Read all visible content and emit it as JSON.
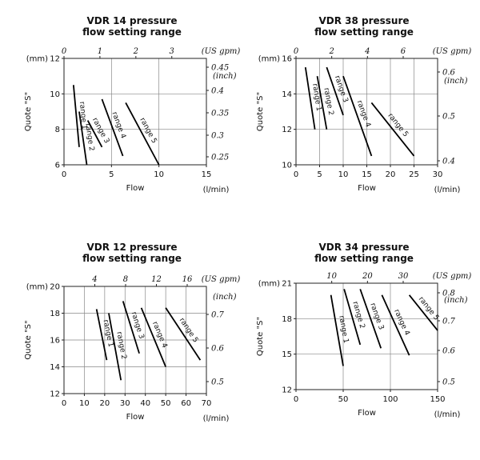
{
  "chart_data": [
    {
      "type": "line",
      "title_line1": "VDR 14 pressure",
      "title_line2": "flow setting range",
      "xlabel": "Flow",
      "xunit": "(l/min)",
      "ylabel": "Quote \"S\"",
      "yunit": "(mm)",
      "xlim": [
        0,
        15
      ],
      "ylim": [
        6,
        12
      ],
      "x_ticks": [
        0,
        5,
        10,
        15
      ],
      "y_ticks": [
        6,
        8,
        10,
        12
      ],
      "top_axis": {
        "unit": "(US gpm)",
        "ticks": [
          0,
          1,
          2,
          3
        ],
        "factor": 3.785
      },
      "right_axis": {
        "unit": "(inch)",
        "labels": [
          "0.45",
          "0.4",
          "0.35",
          "0.3",
          "0.25"
        ],
        "values": [
          0.45,
          0.4,
          0.35,
          0.3,
          0.25
        ]
      },
      "grid": true,
      "series": [
        {
          "name": "range 1",
          "x": [
            1.0,
            1.6
          ],
          "y": [
            10.5,
            7.0
          ]
        },
        {
          "name": "range 2",
          "x": [
            1.6,
            2.4
          ],
          "y": [
            9.0,
            6.0
          ]
        },
        {
          "name": "range 3",
          "x": [
            2.5,
            4.0
          ],
          "y": [
            8.5,
            7.0
          ]
        },
        {
          "name": "range 4",
          "x": [
            4.0,
            6.2
          ],
          "y": [
            9.7,
            6.5
          ]
        },
        {
          "name": "range 5",
          "x": [
            6.5,
            10.0
          ],
          "y": [
            9.5,
            6.0
          ]
        }
      ]
    },
    {
      "type": "line",
      "title_line1": "VDR 38 pressure",
      "title_line2": "flow setting range",
      "xlabel": "Flow",
      "xunit": "(l/min)",
      "ylabel": "Quote \"S\"",
      "yunit": "(mm)",
      "xlim": [
        0,
        30
      ],
      "ylim": [
        10,
        16
      ],
      "x_ticks": [
        0,
        5,
        10,
        15,
        20,
        25,
        30
      ],
      "y_ticks": [
        10,
        12,
        14,
        16
      ],
      "top_axis": {
        "unit": "(US gpm)",
        "ticks": [
          0,
          2,
          4,
          6
        ],
        "factor": 3.785
      },
      "right_axis": {
        "unit": "(inch)",
        "labels": [
          "0.6",
          "0.5",
          "0.4"
        ],
        "values": [
          0.6,
          0.5,
          0.4
        ]
      },
      "grid": true,
      "series": [
        {
          "name": "range 1",
          "x": [
            2.0,
            4.0
          ],
          "y": [
            15.5,
            12.0
          ]
        },
        {
          "name": "range 2",
          "x": [
            4.5,
            6.5
          ],
          "y": [
            15.0,
            12.0
          ]
        },
        {
          "name": "range 3",
          "x": [
            6.5,
            10.0
          ],
          "y": [
            15.5,
            12.8
          ]
        },
        {
          "name": "range 4",
          "x": [
            10.0,
            16.0
          ],
          "y": [
            15.0,
            10.5
          ]
        },
        {
          "name": "range 5",
          "x": [
            16.0,
            25.0
          ],
          "y": [
            13.5,
            10.5
          ]
        }
      ]
    },
    {
      "type": "line",
      "title_line1": "VDR 12 pressure",
      "title_line2": "flow setting range",
      "xlabel": "Flow",
      "xunit": "(l/min)",
      "ylabel": "Quote \"S\"",
      "yunit": "(mm)",
      "xlim": [
        0,
        70
      ],
      "ylim": [
        12,
        20
      ],
      "x_ticks": [
        0,
        10,
        20,
        30,
        40,
        50,
        60,
        70
      ],
      "y_ticks": [
        12,
        14,
        16,
        18,
        20
      ],
      "top_axis": {
        "unit": "(US gpm)",
        "ticks": [
          4,
          8,
          12,
          16
        ],
        "factor": 3.785
      },
      "right_axis": {
        "unit": "(inch)",
        "labels": [
          "0.7",
          "0.6",
          "0.5"
        ],
        "values": [
          0.7,
          0.6,
          0.5
        ]
      },
      "grid": true,
      "series": [
        {
          "name": "range 1",
          "x": [
            16.0,
            21.0
          ],
          "y": [
            18.3,
            14.5
          ]
        },
        {
          "name": "range 2",
          "x": [
            22.0,
            28.0
          ],
          "y": [
            18.0,
            13.0
          ]
        },
        {
          "name": "range 3",
          "x": [
            29.0,
            37.0
          ],
          "y": [
            18.9,
            15.0
          ]
        },
        {
          "name": "range 4",
          "x": [
            38.0,
            50.0
          ],
          "y": [
            18.4,
            14.0
          ]
        },
        {
          "name": "range 5",
          "x": [
            50.0,
            67.0
          ],
          "y": [
            18.4,
            14.5
          ]
        }
      ]
    },
    {
      "type": "line",
      "title_line1": "VDR 34 pressure",
      "title_line2": "flow setting range",
      "xlabel": "Flow",
      "xunit": "(l/min)",
      "ylabel": "Quote \"S\"",
      "yunit": "(mm)",
      "xlim": [
        0,
        150
      ],
      "ylim": [
        12,
        21
      ],
      "x_ticks": [
        0,
        50,
        100,
        150
      ],
      "y_ticks": [
        12,
        15,
        18,
        21
      ],
      "top_axis": {
        "unit": "(US gpm)",
        "ticks": [
          10,
          20,
          30
        ],
        "factor": 3.785
      },
      "right_axis": {
        "unit": "(inch)",
        "labels": [
          "0.8",
          "0.7",
          "0.6",
          "0.5"
        ],
        "values": [
          0.8,
          0.7,
          0.6,
          0.5
        ]
      },
      "grid": true,
      "series": [
        {
          "name": "range 1",
          "x": [
            37.0,
            50.0
          ],
          "y": [
            20.0,
            14.0
          ]
        },
        {
          "name": "range 2",
          "x": [
            51.0,
            68.0
          ],
          "y": [
            20.5,
            15.8
          ]
        },
        {
          "name": "range 3",
          "x": [
            68.0,
            90.0
          ],
          "y": [
            20.5,
            15.5
          ]
        },
        {
          "name": "range 4",
          "x": [
            91.0,
            120.0
          ],
          "y": [
            20.0,
            14.9
          ]
        },
        {
          "name": "range 5",
          "x": [
            120.0,
            150.0
          ],
          "y": [
            20.0,
            17.0
          ]
        }
      ]
    }
  ]
}
